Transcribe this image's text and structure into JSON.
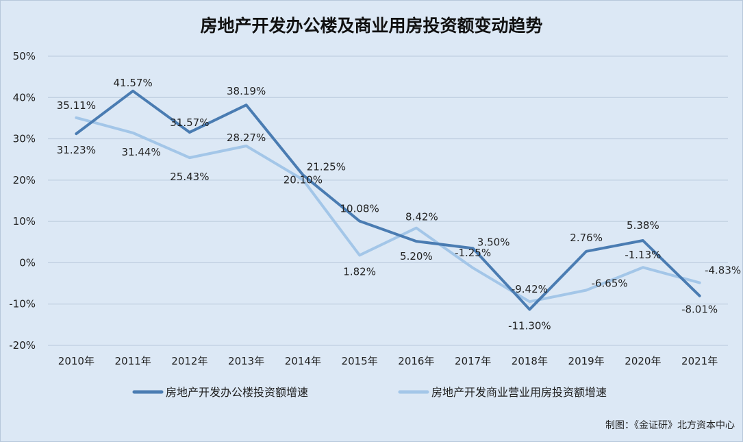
{
  "chart_data": {
    "type": "line",
    "title": "房地产开发办公楼及商业用房投资额变动趋势",
    "categories": [
      "2010年",
      "2011年",
      "2012年",
      "2013年",
      "2014年",
      "2015年",
      "2016年",
      "2017年",
      "2018年",
      "2019年",
      "2020年",
      "2021年"
    ],
    "ylim": [
      -20,
      50
    ],
    "yticks": [
      "50%",
      "40%",
      "30%",
      "20%",
      "10%",
      "0%",
      "-10%",
      "-20%"
    ],
    "ytick_values": [
      50,
      40,
      30,
      20,
      10,
      0,
      -10,
      -20
    ],
    "grid": true,
    "legend_position": "bottom",
    "series": [
      {
        "name": "房地产开发办公楼投资额增速",
        "color": "#4a7cb2",
        "values": [
          31.23,
          41.57,
          31.57,
          38.19,
          21.25,
          10.08,
          5.2,
          3.5,
          -11.3,
          2.76,
          5.38,
          -8.01
        ],
        "labels": [
          "31.23%",
          "41.57%",
          "31.57%",
          "38.19%",
          "21.25%",
          "10.08%",
          "5.20%",
          "3.50%",
          "-11.30%",
          "2.76%",
          "5.38%",
          "-8.01%"
        ]
      },
      {
        "name": "房地产开发商业营业用房投资额增速",
        "color": "#a3c6e8",
        "values": [
          35.11,
          31.44,
          25.43,
          28.27,
          20.1,
          1.82,
          8.42,
          -1.25,
          -9.42,
          -6.65,
          -1.13,
          -4.83
        ],
        "labels": [
          "35.11%",
          "31.44%",
          "25.43%",
          "28.27%",
          "20.10%",
          "1.82%",
          "8.42%",
          "-1.25%",
          "-9.42%",
          "-6.65%",
          "-1.13%",
          "-4.83%"
        ]
      }
    ]
  },
  "credit": "制图：《金证研》北方资本中心"
}
